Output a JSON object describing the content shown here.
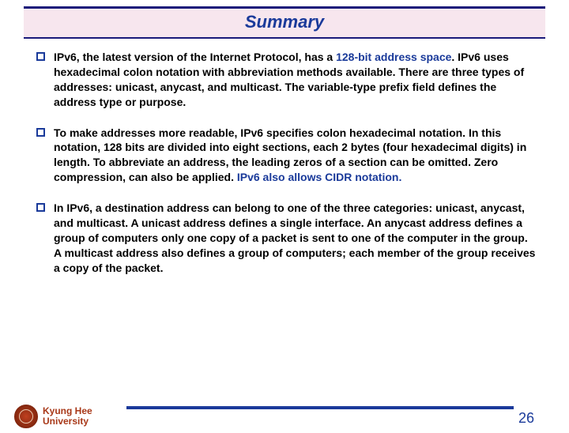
{
  "title": "Summary",
  "bullets": [
    {
      "prefix": "IPv6, the latest version of the Internet Protocol, has a ",
      "highlight1": "128-bit address space",
      "mid": ". IPv6 uses hexadecimal colon notation with abbreviation methods available. There are three types of addresses: unicast, anycast, and multicast. The variable-type prefix field defines the address type or purpose.",
      "highlight2": "",
      "tail": ""
    },
    {
      "prefix": "To make addresses more readable, IPv6 specifies colon hexadecimal notation. In this notation, 128 bits are divided into eight sections, each 2 bytes (four hexadecimal digits) in length. To abbreviate an address, the leading zeros of a section can be omitted. Zero compression, can also be applied. ",
      "highlight1": "IPv6 also allows CIDR notation.",
      "mid": "",
      "highlight2": "",
      "tail": ""
    },
    {
      "prefix": "In IPv6, a destination address can belong to one of the three categories: unicast, anycast, and multicast. A unicast address defines a single interface. An anycast address defines a group of computers only one copy of a packet is sent to one of the computer in the group. A multicast address also defines a group of computers; each member of the group receives a copy of the packet.",
      "highlight1": "",
      "mid": "",
      "highlight2": "",
      "tail": ""
    }
  ],
  "footer": {
    "university_line1": "Kyung Hee",
    "university_line2": "University",
    "page": "26"
  },
  "colors": {
    "title_bg": "#f7e6ee",
    "title_border": "#1a1a7a",
    "accent": "#1a3a9a",
    "uni_color": "#a83818"
  }
}
